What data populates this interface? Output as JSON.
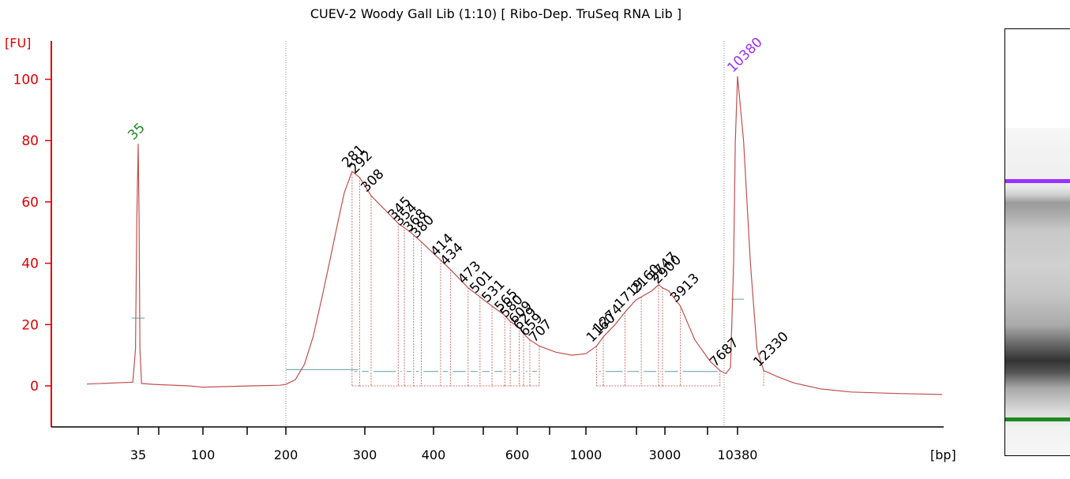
{
  "chart_data": {
    "type": "line",
    "title": "CUEV-2 Woody Gall Lib (1:10)  [ Ribo-Dep. TruSeq RNA Lib  ]",
    "ylabel": "[FU]",
    "xlabel": "[bp]",
    "ylim": [
      -13,
      113
    ],
    "yticks": [
      0,
      20,
      40,
      60,
      80,
      100
    ],
    "xtick_labels": [
      "35",
      "100",
      "200",
      "300",
      "400",
      "600",
      "1000",
      "3000",
      "10380"
    ],
    "colors": {
      "trace": "#c0504d",
      "axis": "#e00000",
      "marker_low": "#228b22",
      "marker_high": "#9b30ff",
      "baseline": "#5f9ea0"
    },
    "markers": [
      {
        "label": "35",
        "bp": 35,
        "fu": 79,
        "color": "#228b22"
      },
      {
        "label": "10380",
        "bp": 10380,
        "fu": 101,
        "color": "#9b30ff"
      }
    ],
    "trace": [
      [
        20,
        0.6
      ],
      [
        33,
        1.2
      ],
      [
        34,
        12
      ],
      [
        34.5,
        55
      ],
      [
        35,
        79
      ],
      [
        35.5,
        55
      ],
      [
        36,
        12
      ],
      [
        37,
        0.8
      ],
      [
        45,
        0.5
      ],
      [
        80,
        0
      ],
      [
        100,
        -0.4
      ],
      [
        150,
        0
      ],
      [
        190,
        0.2
      ],
      [
        200,
        0.5
      ],
      [
        210,
        2
      ],
      [
        220,
        7
      ],
      [
        230,
        16
      ],
      [
        240,
        28
      ],
      [
        250,
        40
      ],
      [
        260,
        52
      ],
      [
        270,
        63
      ],
      [
        281,
        70
      ],
      [
        292,
        68
      ],
      [
        308,
        62
      ],
      [
        345,
        53
      ],
      [
        364,
        50
      ],
      [
        380,
        47
      ],
      [
        414,
        41
      ],
      [
        434,
        38
      ],
      [
        473,
        32
      ],
      [
        501,
        29
      ],
      [
        531,
        26
      ],
      [
        565,
        23
      ],
      [
        580,
        21
      ],
      [
        609,
        19
      ],
      [
        629,
        17
      ],
      [
        659,
        15
      ],
      [
        707,
        13
      ],
      [
        800,
        11
      ],
      [
        900,
        10
      ],
      [
        1000,
        10.5
      ],
      [
        1160,
        13
      ],
      [
        1274,
        16
      ],
      [
        1500,
        20
      ],
      [
        1719,
        24
      ],
      [
        2000,
        28
      ],
      [
        2500,
        31
      ],
      [
        2747,
        33
      ],
      [
        2900,
        32
      ],
      [
        3200,
        31
      ],
      [
        3913,
        26
      ],
      [
        5000,
        15
      ],
      [
        6500,
        8
      ],
      [
        7687,
        5
      ],
      [
        8500,
        4
      ],
      [
        9200,
        6
      ],
      [
        9700,
        40
      ],
      [
        10000,
        80
      ],
      [
        10380,
        101
      ],
      [
        10800,
        80
      ],
      [
        11300,
        40
      ],
      [
        11800,
        12
      ],
      [
        12330,
        5
      ],
      [
        13500,
        3
      ],
      [
        15000,
        1
      ],
      [
        18000,
        -1
      ],
      [
        22000,
        -2
      ],
      [
        30000,
        -2.5
      ],
      [
        40000,
        -2.8
      ]
    ],
    "peaks": [
      {
        "label": "281",
        "bp": 281,
        "fu": 70
      },
      {
        "label": "292",
        "bp": 292,
        "fu": 68
      },
      {
        "label": "308",
        "bp": 308,
        "fu": 62
      },
      {
        "label": "345",
        "bp": 345,
        "fu": 53
      },
      {
        "label": "354",
        "bp": 354,
        "fu": 51
      },
      {
        "label": "368",
        "bp": 368,
        "fu": 49
      },
      {
        "label": "380",
        "bp": 380,
        "fu": 47
      },
      {
        "label": "414",
        "bp": 414,
        "fu": 41
      },
      {
        "label": "434",
        "bp": 434,
        "fu": 38
      },
      {
        "label": "473",
        "bp": 473,
        "fu": 32
      },
      {
        "label": "501",
        "bp": 501,
        "fu": 29
      },
      {
        "label": "531",
        "bp": 531,
        "fu": 26
      },
      {
        "label": "565",
        "bp": 565,
        "fu": 23
      },
      {
        "label": "580",
        "bp": 580,
        "fu": 21
      },
      {
        "label": "609",
        "bp": 609,
        "fu": 19
      },
      {
        "label": "629",
        "bp": 629,
        "fu": 17
      },
      {
        "label": "659",
        "bp": 659,
        "fu": 15
      },
      {
        "label": "707",
        "bp": 707,
        "fu": 13
      },
      {
        "label": "1160",
        "bp": 1160,
        "fu": 13
      },
      {
        "label": "1274",
        "bp": 1274,
        "fu": 16
      },
      {
        "label": "1719",
        "bp": 1719,
        "fu": 24
      },
      {
        "label": "2160",
        "bp": 2160,
        "fu": 29
      },
      {
        "label": "2747",
        "bp": 2747,
        "fu": 33
      },
      {
        "label": "2900",
        "bp": 2900,
        "fu": 32
      },
      {
        "label": "3913",
        "bp": 3913,
        "fu": 26
      },
      {
        "label": "7687",
        "bp": 7687,
        "fu": 5
      },
      {
        "label": "12330",
        "bp": 12330,
        "fu": 5
      }
    ]
  }
}
